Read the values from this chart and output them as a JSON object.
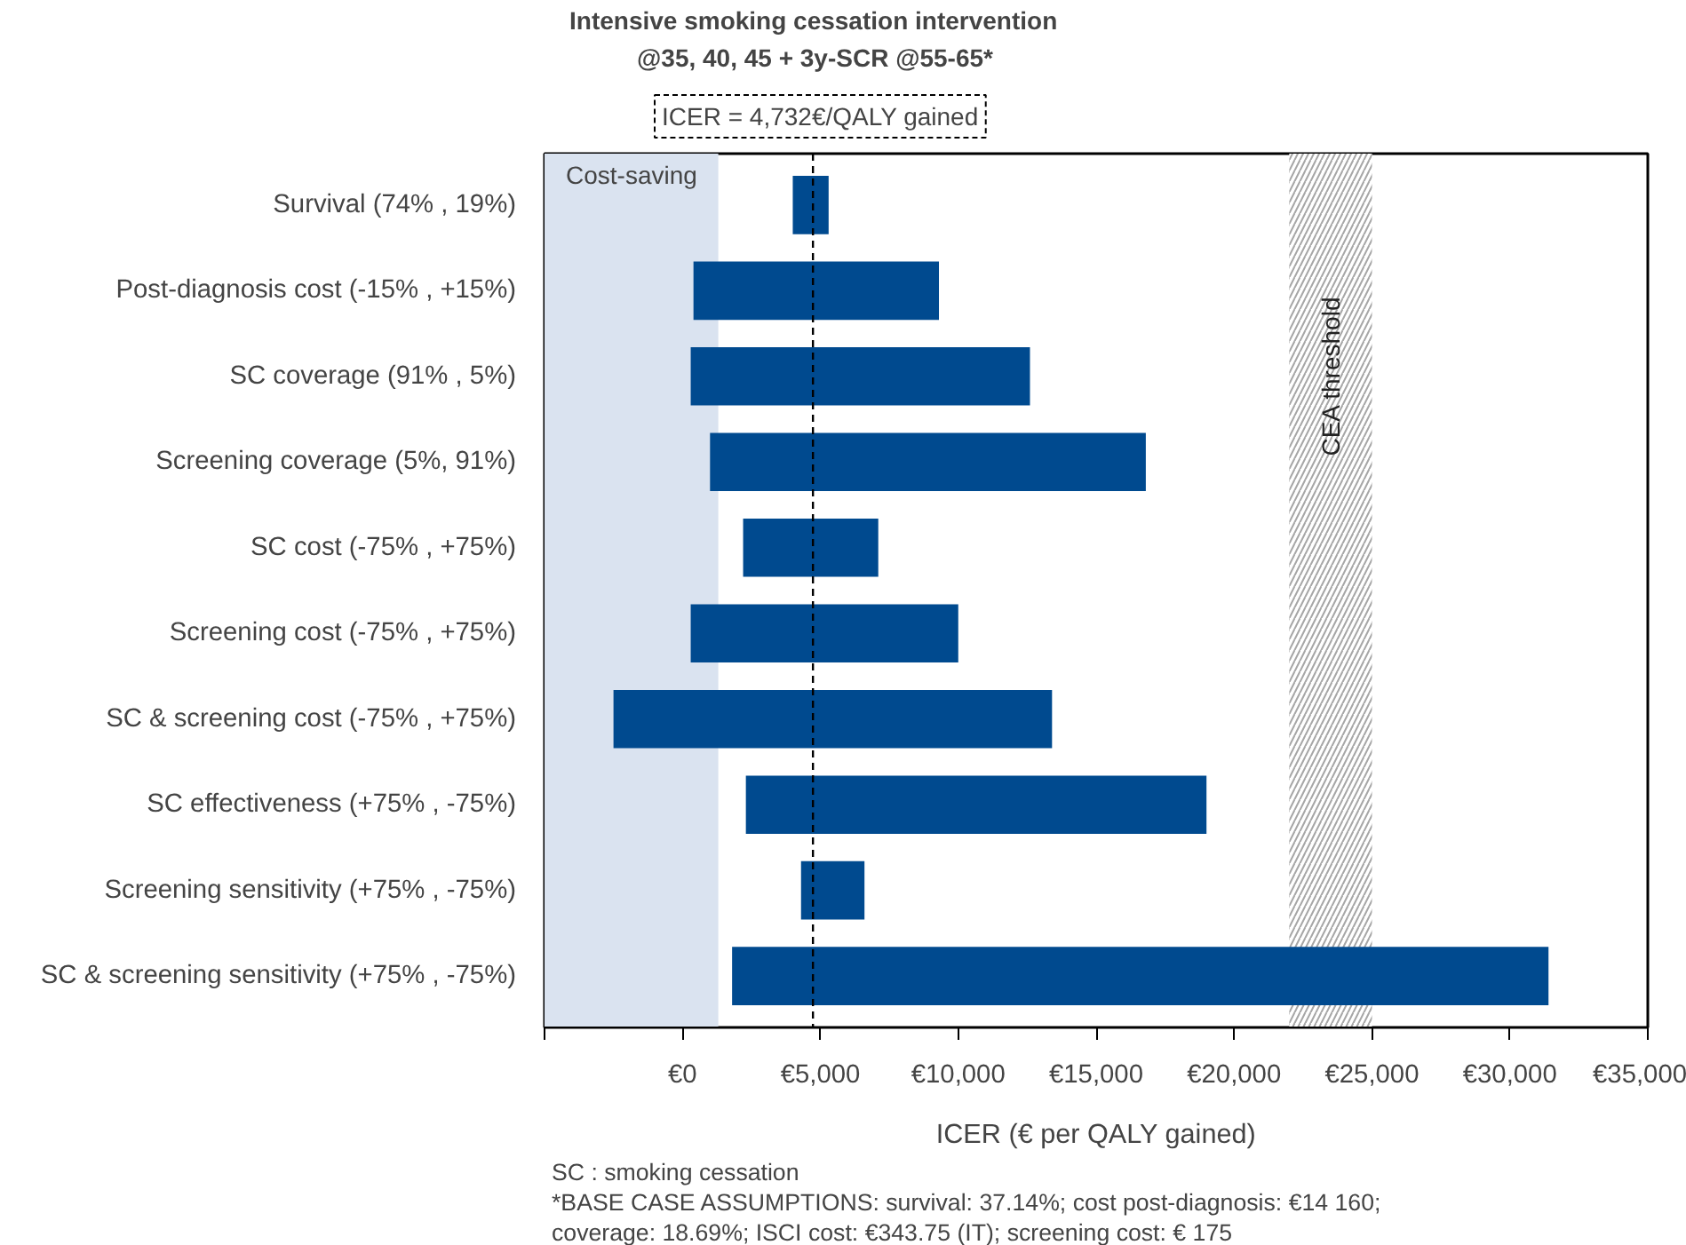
{
  "chart_data": {
    "type": "bar",
    "orientation": "horizontal",
    "title": "Intensive smoking cessation intervention",
    "subtitle": "@35, 40, 45 + 3y-SCR @55-65*",
    "xlabel": "ICER (€ per QALY gained)",
    "categories": [
      "Survival (74% , 19%)",
      "Post-diagnosis cost (-15% , +15%)",
      "SC coverage (91% , 5%)",
      "Screening coverage (5%, 91%)",
      "SC cost (-75% , +75%)",
      "Screening cost (-75% , +75%)",
      "SC & screening cost (-75% , +75%)",
      "SC effectiveness (+75% , -75%)",
      "Screening sensitivity (+75% , -75%)",
      "SC & screening sensitivity (+75% , -75%)"
    ],
    "base": [
      4000,
      400,
      300,
      1000,
      2200,
      300,
      -2500,
      2300,
      4300,
      1800
    ],
    "values": [
      1300,
      8900,
      12300,
      15800,
      4900,
      9700,
      15900,
      16700,
      2300,
      29600
    ],
    "color": "#004a8f",
    "xlim": [
      -5000,
      35000
    ],
    "xticks": [
      {
        "value": -5000,
        "label": null
      },
      {
        "value": 0,
        "label": "€0"
      },
      {
        "value": 5000,
        "label": "€5,000"
      },
      {
        "value": 10000,
        "label": "€10,000"
      },
      {
        "value": 15000,
        "label": "€15,000"
      },
      {
        "value": 20000,
        "label": "€20,000"
      },
      {
        "value": 25000,
        "label": "€25,000"
      },
      {
        "value": 30000,
        "label": "€30,000"
      },
      {
        "value": 35000,
        "label": "€35,000"
      }
    ],
    "ref_lines": [
      {
        "axis": "x",
        "value": 4732,
        "label": "ICER = 4,732€/QALY gained",
        "line_style": "dashed",
        "color": "#000000"
      }
    ],
    "bands": [
      {
        "axis": "x",
        "from": -5000,
        "to": 1300,
        "label": "Cost-saving",
        "color": "#dae3f0"
      },
      {
        "axis": "x",
        "from": 22000,
        "to": 25000,
        "label": "CEA threshold",
        "color": "#a6a6a6"
      }
    ],
    "grid": false,
    "annotations": [
      "SC : smoking cessation",
      "*BASE CASE ASSUMPTIONS: survival: 37.14%; cost post-diagnosis: €14 160;",
      "coverage: 18.69%; ISCI cost: €343.75 (IT); screening cost: € 175"
    ]
  }
}
